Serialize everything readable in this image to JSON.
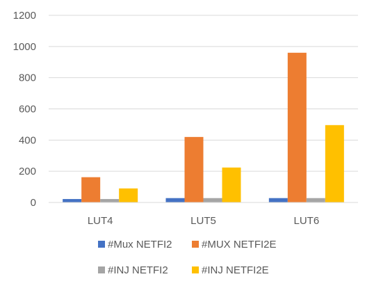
{
  "chart_data": {
    "type": "bar",
    "categories": [
      "LUT4",
      "LUT5",
      "LUT6"
    ],
    "series": [
      {
        "name": "#Mux NETFI2",
        "color": "#4472C4",
        "values": [
          22,
          28,
          28
        ]
      },
      {
        "name": "#MUX NETFI2E",
        "color": "#ED7D31",
        "values": [
          162,
          420,
          960
        ]
      },
      {
        "name": "#INJ NETFI2",
        "color": "#A5A5A5",
        "values": [
          22,
          28,
          28
        ]
      },
      {
        "name": "#INJ NETFI2E",
        "color": "#FFC000",
        "values": [
          90,
          224,
          496
        ]
      }
    ],
    "yticks": [
      "0",
      "200",
      "400",
      "600",
      "800",
      "1000",
      "1200"
    ],
    "ylim": [
      0,
      1200
    ],
    "grid": true,
    "legend_position": "bottom",
    "title": "",
    "xlabel": "",
    "ylabel": ""
  }
}
